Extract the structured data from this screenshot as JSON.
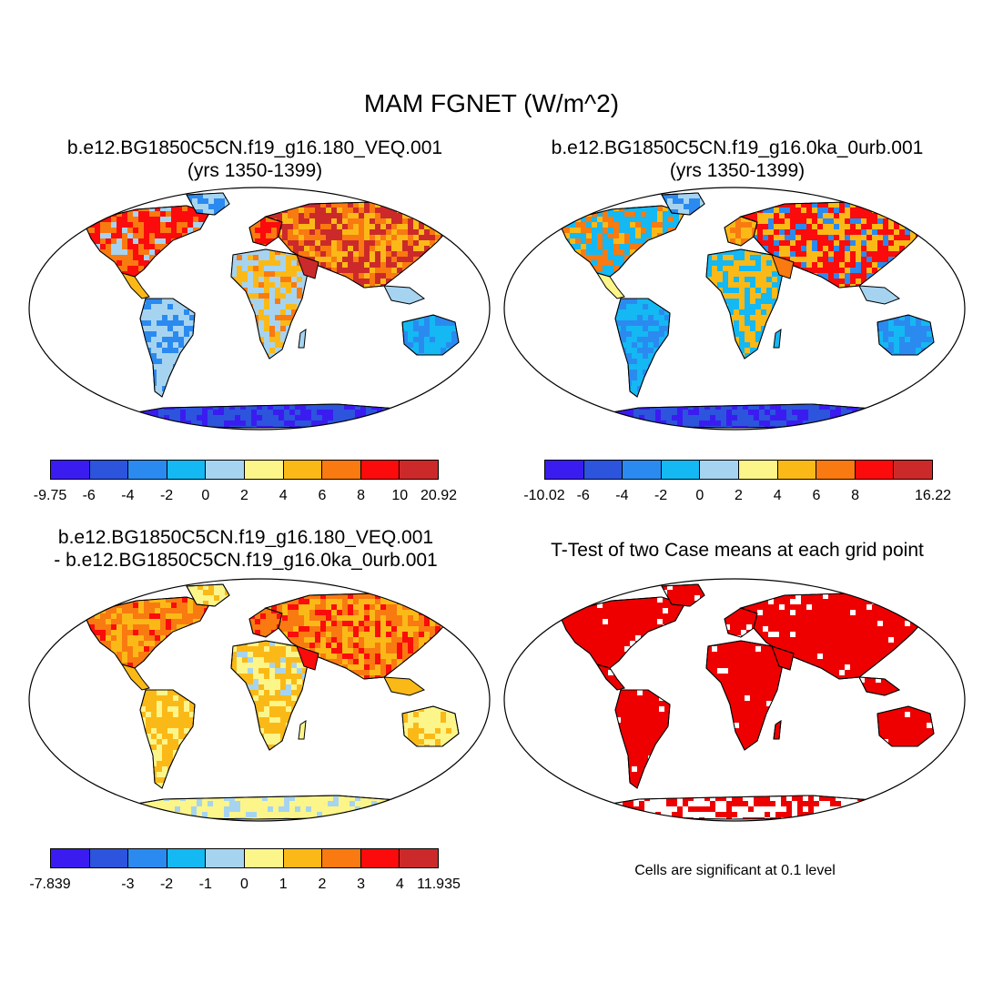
{
  "title": "MAM FGNET (W/m^2)",
  "palette": [
    "#3a1cf0",
    "#2c54dd",
    "#2b8af0",
    "#14b8f3",
    "#a6d4f0",
    "#fbf58a",
    "#fbb917",
    "#f97a10",
    "#fb0b0b",
    "#cc2a2a"
  ],
  "significance_color": "#ee0000",
  "panels": [
    {
      "id": "case1",
      "title_line1": "b.e12.BG1850C5CN.f19_g16.180_VEQ.001",
      "title_line2": "(yrs 1350-1399)",
      "colorbar_labels": [
        "-9.75",
        "-6",
        "-4",
        "-2",
        "0",
        "2",
        "4",
        "6",
        "8",
        "10",
        "20.92"
      ]
    },
    {
      "id": "case2",
      "title_line1": "b.e12.BG1850C5CN.f19_g16.0ka_0urb.001",
      "title_line2": "(yrs 1350-1399)",
      "colorbar_labels": [
        "-10.02",
        "-6",
        "-4",
        "-2",
        "0",
        "2",
        "4",
        "6",
        "8",
        "",
        "16.22"
      ]
    },
    {
      "id": "difference",
      "title_line1": "b.e12.BG1850C5CN.f19_g16.180_VEQ.001",
      "title_line2": "- b.e12.BG1850C5CN.f19_g16.0ka_0urb.001",
      "colorbar_labels": [
        "-7.839",
        "",
        "-3",
        "-2",
        "-1",
        "0",
        "1",
        "2",
        "3",
        "4",
        "11.935"
      ]
    },
    {
      "id": "ttest",
      "title_line1": "T-Test of two Case means at each grid point",
      "note": "Cells are significant at 0.1 level"
    }
  ]
}
